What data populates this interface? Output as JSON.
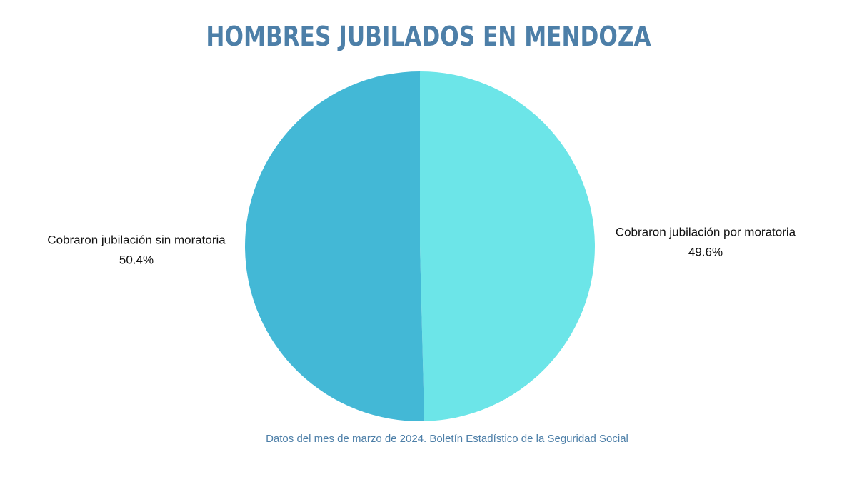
{
  "chart_data": {
    "type": "pie",
    "title": "HOMBRES JUBILADOS EN MENDOZA",
    "categories": [
      "Cobraron jubilación por moratoria",
      "Cobraron jubilación sin moratoria"
    ],
    "values": [
      49.6,
      50.4
    ],
    "value_labels": [
      "49.6%",
      "50.4%"
    ],
    "colors": [
      "#6ce5e8",
      "#43b8d6"
    ],
    "note": "Datos del mes de marzo de 2024. Boletín Estadístico de la Seguridad Social"
  }
}
